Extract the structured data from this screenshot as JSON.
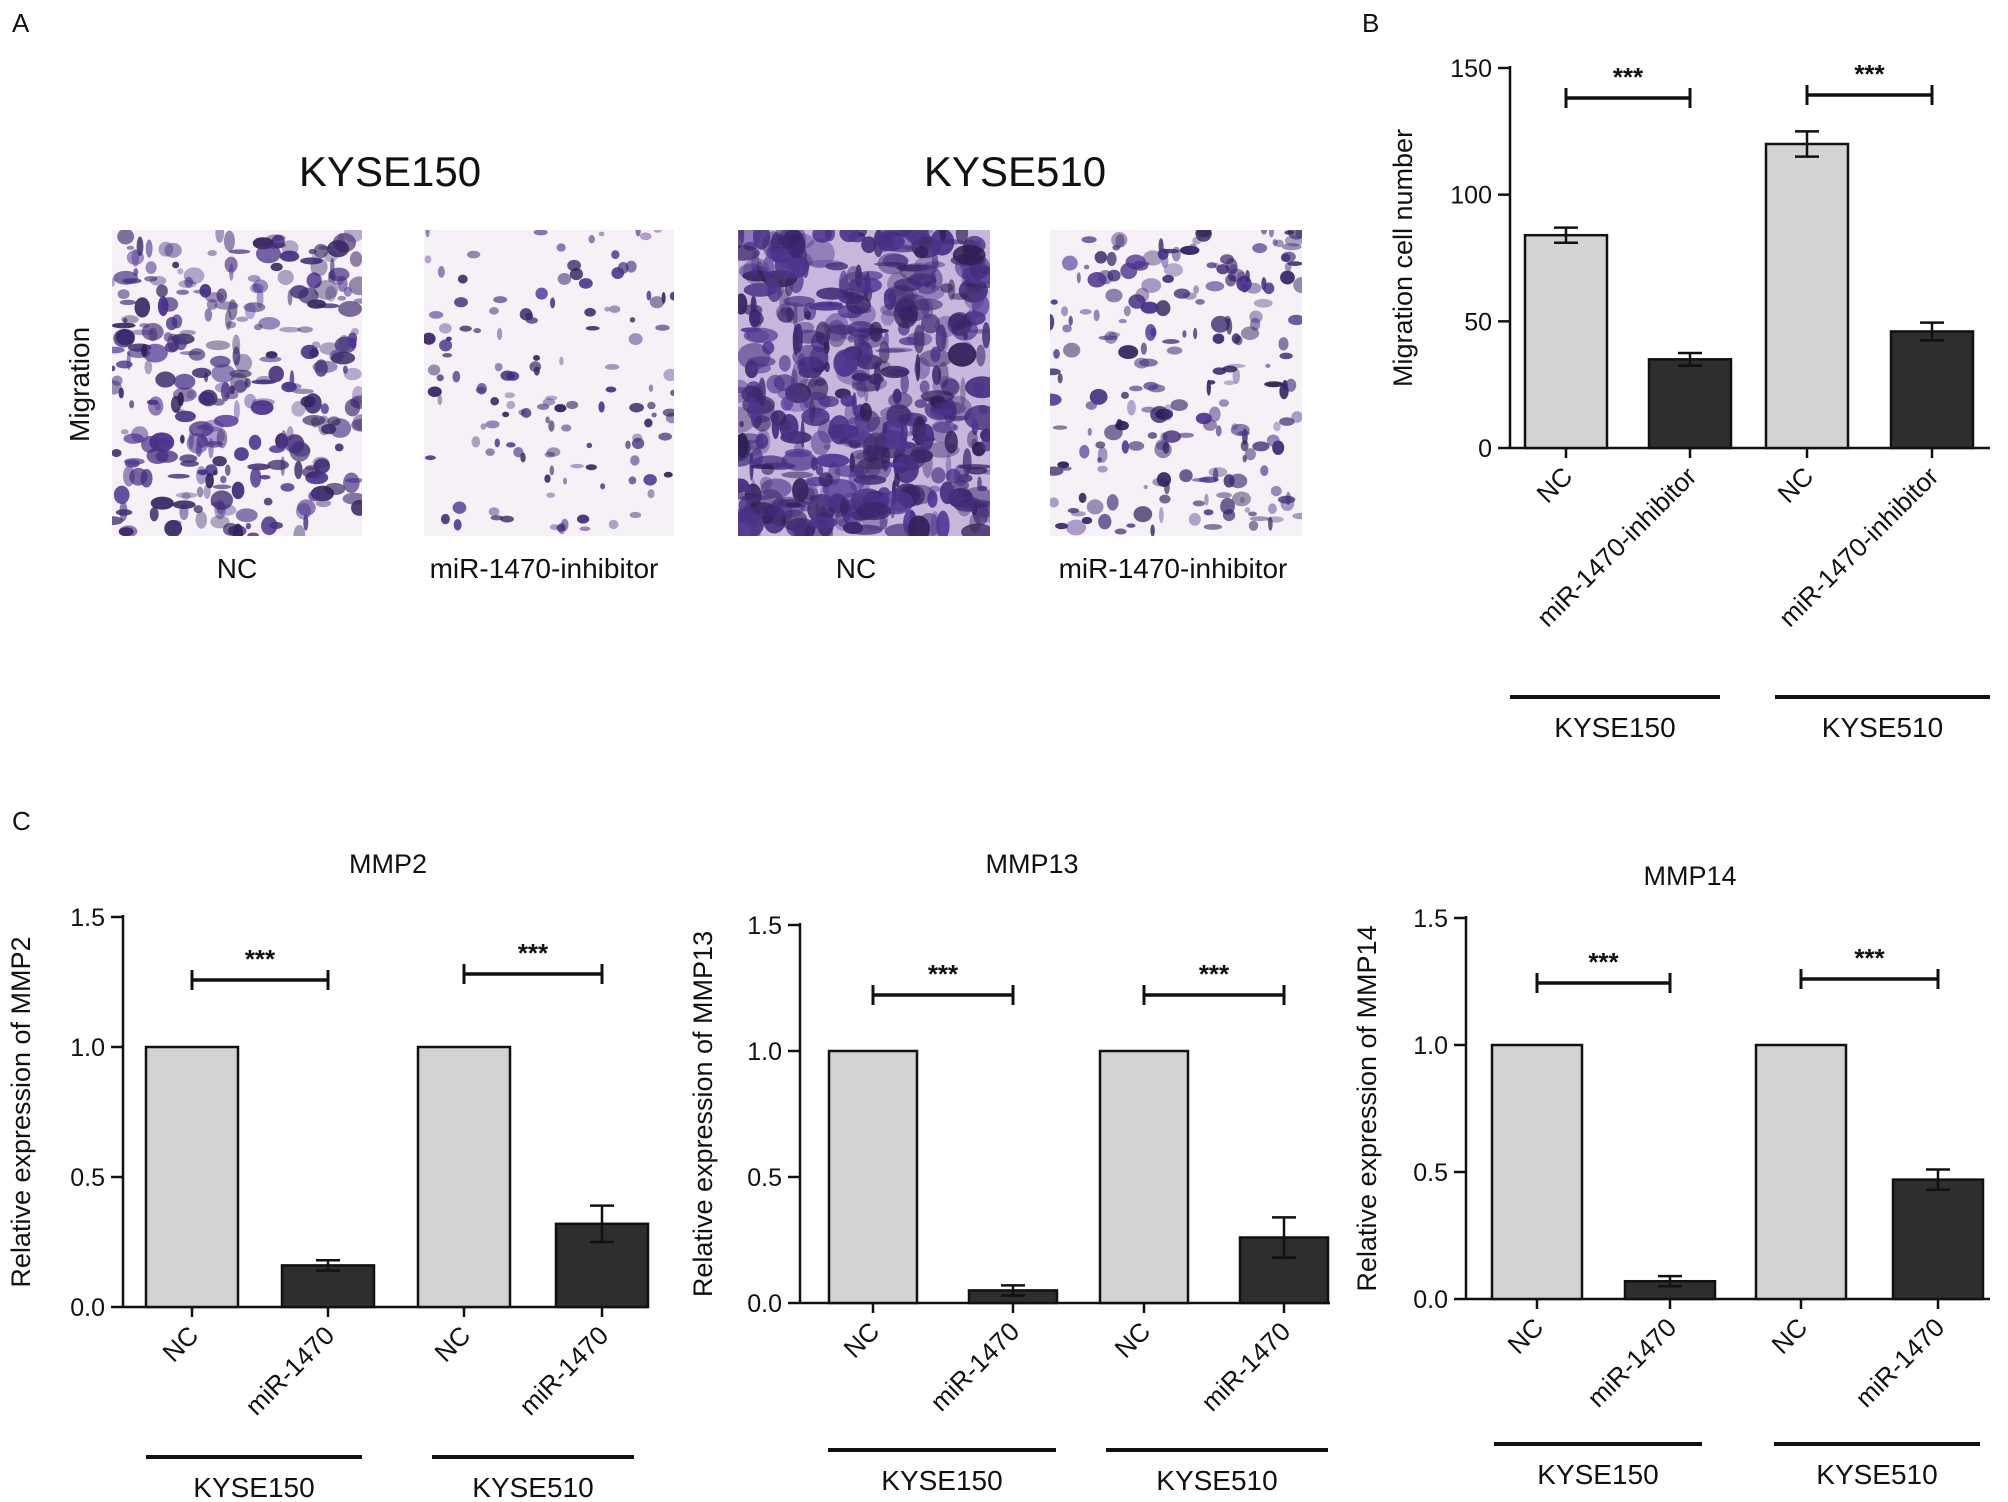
{
  "panels": {
    "a": "A",
    "b": "B",
    "c": "C"
  },
  "panel_a": {
    "cell_lines": [
      "KYSE150",
      "KYSE510"
    ],
    "row_label": "Migration",
    "images": [
      {
        "label": "NC"
      },
      {
        "label": "miR-1470-inhibitor"
      },
      {
        "label": "NC"
      },
      {
        "label": "miR-1470-inhibitor"
      }
    ]
  },
  "colors": {
    "nc": "#d3d3d3",
    "treatment": "#2e2e2e",
    "stain": "#5a3f96"
  },
  "chart_data": [
    {
      "id": "B",
      "type": "bar",
      "title": "",
      "ylabel": "Migration cell number",
      "ylim": [
        0,
        150
      ],
      "yticks": [
        "0",
        "50",
        "100",
        "150"
      ],
      "categories": [
        "NC",
        "miR-1470-inhibitor",
        "NC",
        "miR-1470-inhibitor"
      ],
      "groups": [
        "KYSE150",
        "KYSE510"
      ],
      "values": [
        84,
        35,
        120,
        46
      ],
      "errors": [
        3,
        2.5,
        5,
        3.5
      ],
      "significance": [
        "***",
        "***"
      ]
    },
    {
      "id": "C1",
      "type": "bar",
      "title": "MMP2",
      "ylabel": "Relative expression of MMP2",
      "ylim": [
        0,
        1.5
      ],
      "yticks": [
        "0.0",
        "0.5",
        "1.0",
        "1.5"
      ],
      "categories": [
        "NC",
        "miR-1470",
        "NC",
        "miR-1470"
      ],
      "groups": [
        "KYSE150",
        "KYSE510"
      ],
      "values": [
        1.0,
        0.16,
        1.0,
        0.32
      ],
      "errors": [
        0,
        0.02,
        0,
        0.07
      ],
      "significance": [
        "***",
        "***"
      ]
    },
    {
      "id": "C2",
      "type": "bar",
      "title": "MMP13",
      "ylabel": "Relative expression of MMP13",
      "ylim": [
        0,
        1.5
      ],
      "yticks": [
        "0.0",
        "0.5",
        "1.0",
        "1.5"
      ],
      "categories": [
        "NC",
        "miR-1470",
        "NC",
        "miR-1470"
      ],
      "groups": [
        "KYSE150",
        "KYSE510"
      ],
      "values": [
        1.0,
        0.05,
        1.0,
        0.26
      ],
      "errors": [
        0,
        0.02,
        0,
        0.08
      ],
      "significance": [
        "***",
        "***"
      ]
    },
    {
      "id": "C3",
      "type": "bar",
      "title": "MMP14",
      "ylabel": "Relative expression of MMP14",
      "ylim": [
        0,
        1.5
      ],
      "yticks": [
        "0.0",
        "0.5",
        "1.0",
        "1.5"
      ],
      "categories": [
        "NC",
        "miR-1470",
        "NC",
        "miR-1470"
      ],
      "groups": [
        "KYSE150",
        "KYSE510"
      ],
      "values": [
        1.0,
        0.07,
        1.0,
        0.47
      ],
      "errors": [
        0,
        0.02,
        0,
        0.04
      ],
      "significance": [
        "***",
        "***"
      ]
    }
  ]
}
